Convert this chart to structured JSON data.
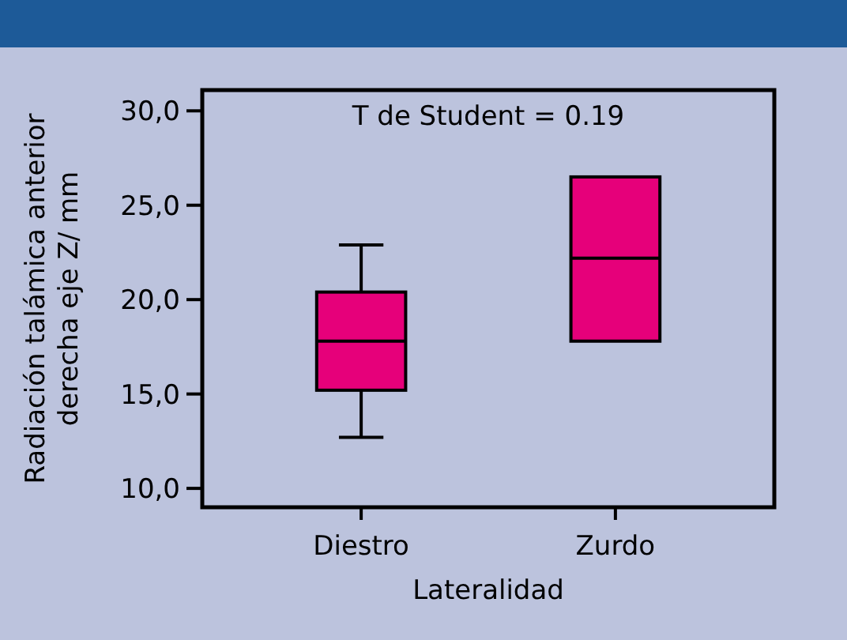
{
  "chart_data": {
    "type": "box",
    "xlabel": "Lateralidad",
    "ylabel": "Radiación talámica anterior derecha eje Z/ mm",
    "annotations": [
      "T de Student = 0.19"
    ],
    "categories": [
      "Diestro",
      "Zurdo"
    ],
    "series": [
      {
        "color": "#e6007a",
        "boxes": [
          {
            "low": 12.7,
            "q1": 15.2,
            "median": 17.8,
            "q3": 20.4,
            "high": 22.9
          },
          {
            "low": 17.8,
            "q1": 17.8,
            "median": 22.2,
            "q3": 26.5,
            "high": 26.5
          }
        ]
      }
    ],
    "ylim": [
      9,
      31.1
    ],
    "yticks": [
      {
        "value": 10,
        "label": "10,0"
      },
      {
        "value": 15,
        "label": "15,0"
      },
      {
        "value": 20,
        "label": "20,0"
      },
      {
        "value": 25,
        "label": "25,0"
      },
      {
        "value": 30,
        "label": "30,0"
      }
    ],
    "grid": false
  }
}
